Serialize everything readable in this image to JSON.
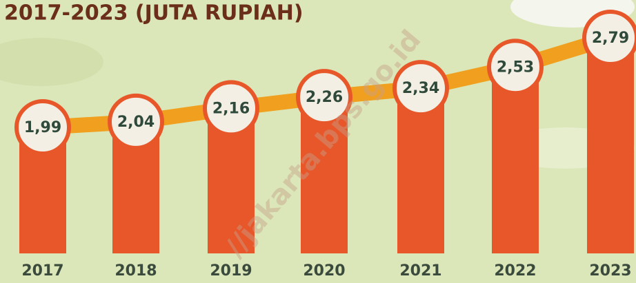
{
  "chart_data": {
    "type": "bar",
    "title": "2017-2023 (JUTA RUPIAH)",
    "categories": [
      "2017",
      "2018",
      "2019",
      "2020",
      "2021",
      "2022",
      "2023"
    ],
    "values": [
      1.99,
      2.04,
      2.16,
      2.26,
      2.34,
      2.53,
      2.79
    ],
    "value_labels": [
      "1,99",
      "2,04",
      "2,16",
      "2,26",
      "2,34",
      "2,53",
      "2,79"
    ],
    "color": "#e8572a",
    "line_color": "#f0a01e",
    "watermark": "//jakarta.bps.go.id"
  }
}
